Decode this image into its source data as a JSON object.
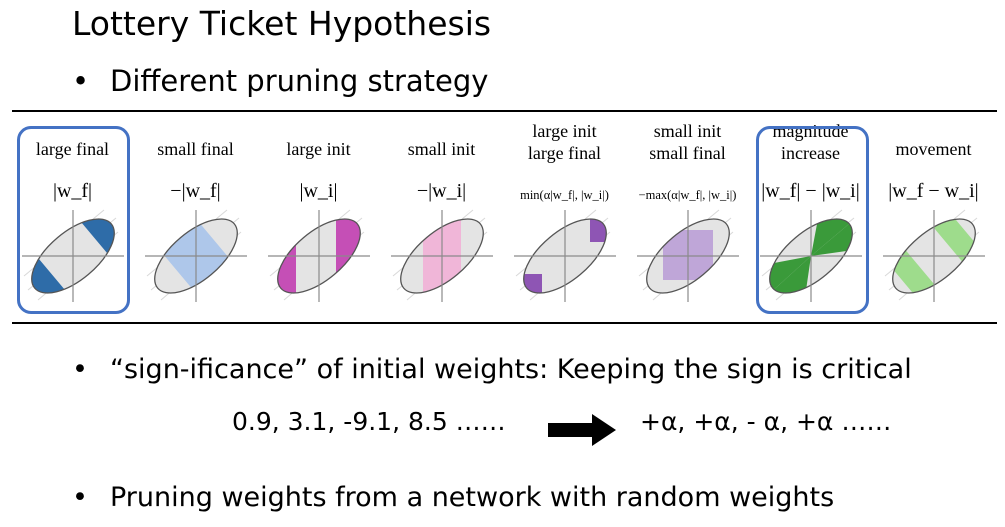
{
  "title": "Lottery Ticket Hypothesis",
  "bullets": {
    "b1": "Different pruning strategy",
    "b2": "“sign-ificance” of initial weights: Keeping the sign is critical",
    "b3": "Pruning weights from a network with random weights",
    "symbol": "•"
  },
  "panels": [
    {
      "label": "large final",
      "formula": "|w_f|",
      "color": "#2e6ca8",
      "highlighted": true
    },
    {
      "label": "small final",
      "formula": "−|w_f|",
      "color": "#aec7ea",
      "highlighted": false
    },
    {
      "label": "large init",
      "formula": "|w_i|",
      "color": "#c54fb6",
      "highlighted": false
    },
    {
      "label": "small init",
      "formula": "−|w_i|",
      "color": "#f0b6d8",
      "highlighted": false
    },
    {
      "label": "large init\nlarge final",
      "formula": "min(α|w_f|, |w_i|)",
      "color": "#8e55b4",
      "highlighted": false
    },
    {
      "label": "small init\nsmall final",
      "formula": "−max(α|w_f|, |w_i|)",
      "color": "#bfa6d8",
      "highlighted": false
    },
    {
      "label": "magnitude\nincrease",
      "formula": "|w_f| − |w_i|",
      "color": "#3a9a3a",
      "highlighted": true
    },
    {
      "label": "movement",
      "formula": "|w_f − w_i|",
      "color": "#9edc8c",
      "highlighted": false
    }
  ],
  "example": {
    "weights": "0.9, 3.1, -9.1, 8.5 ……",
    "signs": "+α, +α, - α, +α ……"
  }
}
